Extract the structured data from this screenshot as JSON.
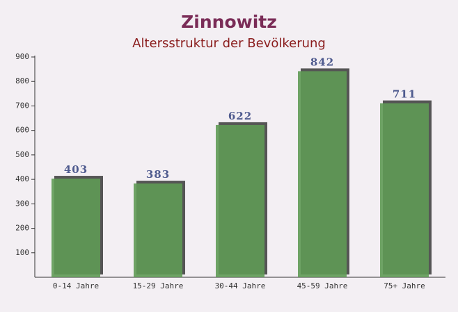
{
  "chart_data": {
    "type": "bar",
    "title": "Zinnowitz",
    "subtitle": "Altersstruktur der Bevölkerung",
    "categories": [
      "0-14 Jahre",
      "15-29 Jahre",
      "30-44 Jahre",
      "45-59 Jahre",
      "75+ Jahre"
    ],
    "values": [
      403,
      383,
      622,
      842,
      711
    ],
    "color": "#5f9a55",
    "ylim": [
      0,
      900
    ],
    "yticks": [
      100,
      200,
      300,
      400,
      500,
      600,
      700,
      800,
      900
    ],
    "grid": false
  }
}
